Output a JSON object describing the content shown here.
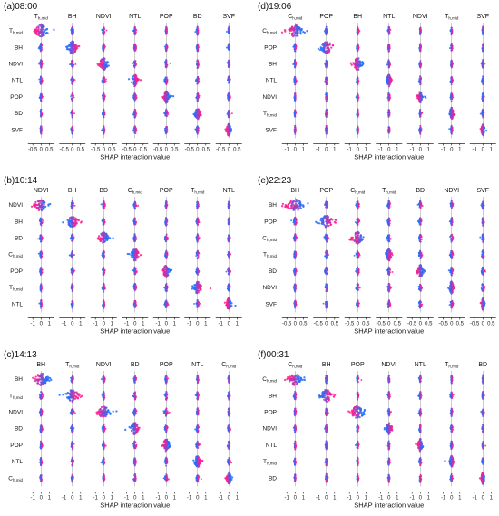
{
  "figure": {
    "colors": {
      "low": "#1f6fff",
      "high": "#ff1d8e",
      "mid": "#8a2bd6",
      "axis": "#000000",
      "zero_line": "#9a9a9a"
    },
    "panels": [
      {
        "title": "(a)08:00",
        "features": [
          "T_h,mid",
          "BH",
          "NDVI",
          "NTL",
          "POP",
          "BD",
          "SVF"
        ],
        "x_ticks": [
          "-0.5",
          "0",
          "0.5"
        ],
        "x_range": [
          -0.8,
          0.8
        ],
        "xlabel": "SHAP interaction value"
      },
      {
        "title": "(d)19:06",
        "features": [
          "C_h,mid",
          "POP",
          "BH",
          "NTL",
          "NDVI",
          "T_h,mid",
          "SVF"
        ],
        "x_ticks": [
          "-1",
          "0",
          "1"
        ],
        "x_range": [
          -1.6,
          1.6
        ],
        "xlabel": "SHAP interaction value"
      },
      {
        "title": "(b)10:14",
        "features": [
          "NDVI",
          "BH",
          "BD",
          "C_h,mid",
          "POP",
          "T_h,mid",
          "NTL"
        ],
        "x_ticks": [
          "-1",
          "0",
          "1"
        ],
        "x_range": [
          -1.6,
          1.6
        ],
        "xlabel": "SHAP interaction value"
      },
      {
        "title": "(e)22:23",
        "features": [
          "BH",
          "POP",
          "C_h,mid",
          "T_h,mid",
          "BD",
          "NDVI",
          "SVF"
        ],
        "x_ticks": [
          "-0.5",
          "0",
          "0.5"
        ],
        "x_range": [
          -0.8,
          0.8
        ],
        "xlabel": "SHAP interaction value"
      },
      {
        "title": "(c)14:13",
        "features": [
          "BH",
          "T_h,mid",
          "NDVI",
          "BD",
          "POP",
          "NTL",
          "C_h,mid"
        ],
        "x_ticks": [
          "-1",
          "0",
          "1"
        ],
        "x_range": [
          -1.6,
          1.6
        ],
        "xlabel": "SHAP interaction value"
      },
      {
        "title": "(f)00:31",
        "features": [
          "C_h,mid",
          "BH",
          "POP",
          "NDVI",
          "NTL",
          "T_h,mid",
          "BD"
        ],
        "x_ticks": [
          "-1",
          "0",
          "1"
        ],
        "x_range": [
          -1.6,
          1.6
        ],
        "xlabel": "SHAP interaction value"
      }
    ]
  },
  "chart_data": [
    {
      "type": "scatter",
      "subtype": "SHAP interaction summary (beeswarm matrix)",
      "title": "(a)08:00",
      "features": [
        "T_h,mid",
        "BH",
        "NDVI",
        "NTL",
        "POP",
        "BD",
        "SVF"
      ],
      "xlabel": "SHAP interaction value",
      "xlim": [
        -0.8,
        0.8
      ],
      "x_ticks": [
        -0.5,
        0,
        0.5
      ],
      "color_scale": {
        "low": "#1f6fff",
        "high": "#ff1d8e"
      },
      "diagonal_spread": [
        0.45,
        0.35,
        0.3,
        0.2,
        0.2,
        0.2,
        0.15
      ],
      "offdiagonal_spread": 0.1
    },
    {
      "type": "scatter",
      "subtype": "SHAP interaction summary (beeswarm matrix)",
      "title": "(d)19:06",
      "features": [
        "C_h,mid",
        "POP",
        "BH",
        "NTL",
        "NDVI",
        "T_h,mid",
        "SVF"
      ],
      "xlabel": "SHAP interaction value",
      "xlim": [
        -1.6,
        1.6
      ],
      "x_ticks": [
        -1,
        0,
        1
      ],
      "color_scale": {
        "low": "#1f6fff",
        "high": "#ff1d8e"
      },
      "diagonal_spread": [
        1.0,
        0.9,
        0.6,
        0.3,
        0.3,
        0.25,
        0.2
      ],
      "offdiagonal_spread": 0.15
    },
    {
      "type": "scatter",
      "subtype": "SHAP interaction summary (beeswarm matrix)",
      "title": "(b)10:14",
      "features": [
        "NDVI",
        "BH",
        "BD",
        "C_h,mid",
        "POP",
        "T_h,mid",
        "NTL"
      ],
      "xlabel": "SHAP interaction value",
      "xlim": [
        -1.6,
        1.6
      ],
      "x_ticks": [
        -1,
        0,
        1
      ],
      "color_scale": {
        "low": "#1f6fff",
        "high": "#ff1d8e"
      },
      "diagonal_spread": [
        0.9,
        0.7,
        0.7,
        0.5,
        0.5,
        0.5,
        0.3
      ],
      "offdiagonal_spread": 0.2
    },
    {
      "type": "scatter",
      "subtype": "SHAP interaction summary (beeswarm matrix)",
      "title": "(e)22:23",
      "features": [
        "BH",
        "POP",
        "C_h,mid",
        "T_h,mid",
        "BD",
        "NDVI",
        "SVF"
      ],
      "xlabel": "SHAP interaction value",
      "xlim": [
        -0.8,
        0.8
      ],
      "x_ticks": [
        -0.5,
        0,
        0.5
      ],
      "color_scale": {
        "low": "#1f6fff",
        "high": "#ff1d8e"
      },
      "diagonal_spread": [
        0.6,
        0.55,
        0.4,
        0.2,
        0.2,
        0.15,
        0.1
      ],
      "offdiagonal_spread": 0.12
    },
    {
      "type": "scatter",
      "subtype": "SHAP interaction summary (beeswarm matrix)",
      "title": "(c)14:13",
      "features": [
        "BH",
        "T_h,mid",
        "NDVI",
        "BD",
        "POP",
        "NTL",
        "C_h,mid"
      ],
      "xlabel": "SHAP interaction value",
      "xlim": [
        -1.6,
        1.6
      ],
      "x_ticks": [
        -1,
        0,
        1
      ],
      "color_scale": {
        "low": "#1f6fff",
        "high": "#ff1d8e"
      },
      "diagonal_spread": [
        1.0,
        0.9,
        0.9,
        0.6,
        0.5,
        0.4,
        0.3
      ],
      "offdiagonal_spread": 0.2
    },
    {
      "type": "scatter",
      "subtype": "SHAP interaction summary (beeswarm matrix)",
      "title": "(f)00:31",
      "features": [
        "C_h,mid",
        "BH",
        "POP",
        "NDVI",
        "NTL",
        "T_h,mid",
        "BD"
      ],
      "xlabel": "SHAP interaction value",
      "xlim": [
        -1.6,
        1.6
      ],
      "x_ticks": [
        -1,
        0,
        1
      ],
      "color_scale": {
        "low": "#1f6fff",
        "high": "#ff1d8e"
      },
      "diagonal_spread": [
        0.9,
        0.8,
        1.0,
        0.4,
        0.3,
        0.25,
        0.2
      ],
      "offdiagonal_spread": 0.15
    }
  ]
}
